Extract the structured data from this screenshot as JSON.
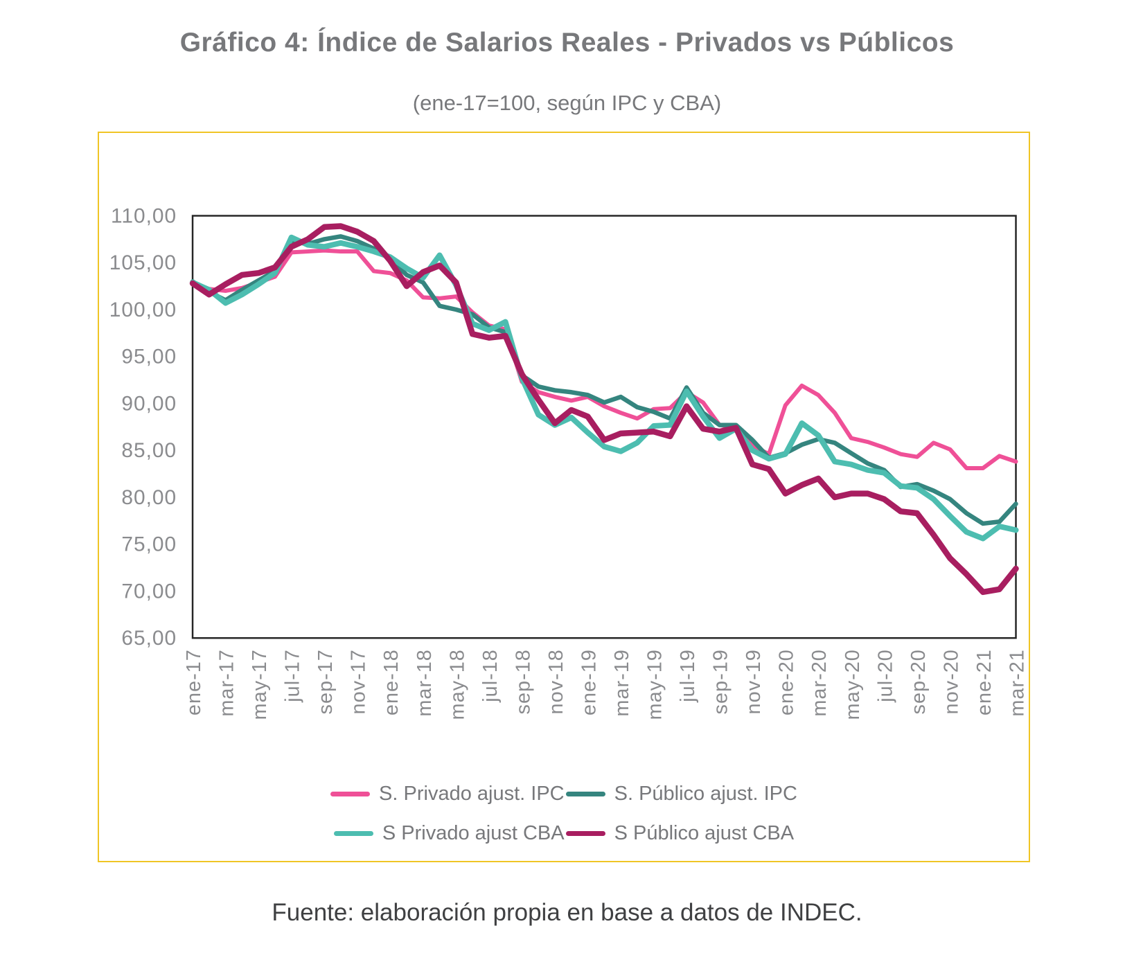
{
  "page": {
    "title": "Gráfico 4: Índice de Salarios Reales - Privados vs Públicos",
    "subtitle": "(ene-17=100, según IPC y CBA)",
    "source": "Fuente: elaboración propia en base a datos de INDEC."
  },
  "colors": {
    "frame": "#F0C525",
    "plot_border": "#262626",
    "axis_text": "#8A8B8E",
    "title_text": "#77787B",
    "legend_text": "#77787B",
    "source_text": "#3F4042",
    "pink": "#EF5097",
    "dark_teal": "#35857F",
    "light_teal": "#4DBDB0",
    "magenta": "#A81E60"
  },
  "legend": {
    "rows": [
      [
        {
          "label": "S. Privado ajust. IPC",
          "color": "#EF5097"
        },
        {
          "label": "S. Público ajust. IPC",
          "color": "#35857F"
        }
      ],
      [
        {
          "label": "S Privado ajust CBA",
          "color": "#4DBDB0"
        },
        {
          "label": "S Público ajust CBA",
          "color": "#A81E60"
        }
      ]
    ]
  },
  "chart_data": {
    "type": "line",
    "title": "Gráfico 4: Índice de Salarios Reales - Privados vs Públicos",
    "subtitle": "(ene-17=100, según IPC y CBA)",
    "xlabel": "",
    "ylabel": "",
    "ylim": [
      65,
      110
    ],
    "grid": false,
    "legend_position": "bottom",
    "x": [
      "ene-17",
      "feb-17",
      "mar-17",
      "abr-17",
      "may-17",
      "jun-17",
      "jul-17",
      "ago-17",
      "sep-17",
      "oct-17",
      "nov-17",
      "dic-17",
      "ene-18",
      "feb-18",
      "mar-18",
      "abr-18",
      "may-18",
      "jun-18",
      "jul-18",
      "ago-18",
      "sep-18",
      "oct-18",
      "nov-18",
      "dic-18",
      "ene-19",
      "feb-19",
      "mar-19",
      "abr-19",
      "may-19",
      "jun-19",
      "jul-19",
      "ago-19",
      "sep-19",
      "oct-19",
      "nov-19",
      "dic-19",
      "ene-20",
      "feb-20",
      "mar-20",
      "abr-20",
      "may-20",
      "jun-20",
      "jul-20",
      "ago-20",
      "sep-20",
      "oct-20",
      "nov-20",
      "dic-20",
      "ene-21",
      "feb-21",
      "mar-21"
    ],
    "x_tick_labels": [
      "ene-17",
      "mar-17",
      "may-17",
      "jul-17",
      "sep-17",
      "nov-17",
      "ene-18",
      "mar-18",
      "may-18",
      "jul-18",
      "sep-18",
      "nov-18",
      "ene-19",
      "mar-19",
      "may-19",
      "jul-19",
      "sep-19",
      "nov-19",
      "ene-20",
      "mar-20",
      "may-20",
      "jul-20",
      "sep-20",
      "nov-20",
      "ene-21",
      "mar-21"
    ],
    "y_ticks": {
      "values": [
        110,
        105,
        100,
        95,
        90,
        85,
        80,
        75,
        70,
        65
      ],
      "labels": [
        "110,00",
        "105,00",
        "100,00",
        "95,00",
        "90,00",
        "85,00",
        "80,00",
        "75,00",
        "70,00",
        "65,00"
      ]
    },
    "series": [
      {
        "id": "s-privado-ipc",
        "name": "S. Privado ajust. IPC",
        "color": "#EF5097",
        "stroke_width": 6,
        "values": [
          102.9,
          102.2,
          102.0,
          102.3,
          102.9,
          103.5,
          106.1,
          106.2,
          106.3,
          106.2,
          106.2,
          104.1,
          103.9,
          103.1,
          101.3,
          101.2,
          101.4,
          99.7,
          98.3,
          97.9,
          92.3,
          91.2,
          90.7,
          90.3,
          90.7,
          89.7,
          89.0,
          88.4,
          89.4,
          89.5,
          91.2,
          90.1,
          87.7,
          87.4,
          85.5,
          84.6,
          89.8,
          91.9,
          90.9,
          89.0,
          86.3,
          85.9,
          85.3,
          84.6,
          84.3,
          85.8,
          85.1,
          83.1,
          83.1,
          84.4,
          83.8
        ]
      },
      {
        "id": "s-publico-ipc",
        "name": "S. Público ajust. IPC",
        "color": "#35857F",
        "stroke_width": 6.5,
        "values": [
          103.0,
          101.9,
          101.0,
          102.1,
          103.1,
          104.1,
          107.3,
          107.0,
          107.5,
          107.8,
          107.3,
          106.5,
          105.4,
          103.7,
          102.9,
          100.4,
          100.0,
          99.5,
          98.1,
          97.6,
          93.0,
          91.8,
          91.4,
          91.2,
          90.9,
          90.1,
          90.7,
          89.6,
          89.1,
          88.4,
          91.7,
          89.0,
          87.7,
          87.7,
          86.1,
          84.2,
          84.7,
          85.6,
          86.2,
          85.8,
          84.7,
          83.6,
          82.9,
          81.1,
          81.4,
          80.7,
          79.8,
          78.3,
          77.2,
          77.4,
          79.3
        ]
      },
      {
        "id": "s-privado-cba",
        "name": "S Privado ajust CBA",
        "color": "#4DBDB0",
        "stroke_width": 8,
        "values": [
          102.9,
          102.1,
          100.7,
          101.6,
          102.7,
          103.9,
          107.7,
          106.9,
          106.7,
          107.1,
          106.7,
          106.2,
          105.6,
          104.4,
          103.4,
          105.8,
          102.6,
          98.5,
          97.8,
          98.7,
          92.7,
          88.8,
          87.7,
          88.5,
          86.9,
          85.4,
          84.9,
          85.8,
          87.6,
          87.7,
          91.3,
          88.6,
          86.3,
          87.3,
          85.0,
          84.1,
          84.6,
          87.9,
          86.6,
          83.8,
          83.5,
          82.9,
          82.6,
          81.2,
          81.0,
          79.8,
          78.0,
          76.3,
          75.6,
          76.9,
          76.5
        ]
      },
      {
        "id": "s-publico-cba",
        "name": "S Público ajust CBA",
        "color": "#A81E60",
        "stroke_width": 8.5,
        "values": [
          102.8,
          101.6,
          102.7,
          103.7,
          103.9,
          104.5,
          106.7,
          107.5,
          108.8,
          108.9,
          108.3,
          107.3,
          105.2,
          102.5,
          104.0,
          104.7,
          102.9,
          97.4,
          97.0,
          97.2,
          93.1,
          90.4,
          87.9,
          89.3,
          88.6,
          86.1,
          86.8,
          86.9,
          87.0,
          86.5,
          89.7,
          87.3,
          87.0,
          87.4,
          83.5,
          83.0,
          80.4,
          81.3,
          82.0,
          80.0,
          80.4,
          80.4,
          79.8,
          78.5,
          78.3,
          76.0,
          73.5,
          71.8,
          69.9,
          70.2,
          72.4
        ]
      }
    ]
  }
}
